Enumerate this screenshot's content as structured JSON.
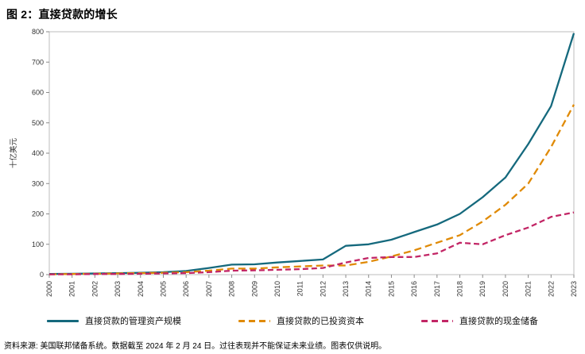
{
  "title": "图 2：直接贷款的增长",
  "footer": "资料来源: 美国联邦储备系统。数据截至 2024 年 2 月 24 日。过往表现并不能保证未来业绩。图表仅供说明。",
  "chart_data": {
    "type": "line",
    "title": "图 2：直接贷款的增长",
    "xlabel": "",
    "ylabel": "十亿美元",
    "ylim": [
      0,
      800
    ],
    "yticks": [
      0,
      100,
      200,
      300,
      400,
      500,
      600,
      700,
      800
    ],
    "grid": false,
    "legend_position": "bottom",
    "x": [
      2000,
      2001,
      2002,
      2003,
      2004,
      2005,
      2006,
      2007,
      2008,
      2009,
      2010,
      2011,
      2012,
      2013,
      2014,
      2015,
      2016,
      2017,
      2018,
      2019,
      2020,
      2021,
      2022,
      2023
    ],
    "series": [
      {
        "name": "直接贷款的管理资产规模",
        "color": "#15697d",
        "style": "solid",
        "values": [
          2,
          3,
          4,
          5,
          6,
          8,
          12,
          22,
          33,
          34,
          40,
          45,
          50,
          95,
          100,
          115,
          140,
          165,
          200,
          255,
          320,
          430,
          555,
          795
        ]
      },
      {
        "name": "直接贷款的已投资资本",
        "color": "#e08a06",
        "style": "dashed",
        "values": [
          1,
          2,
          3,
          4,
          5,
          6,
          8,
          13,
          20,
          20,
          24,
          27,
          30,
          30,
          42,
          60,
          80,
          105,
          130,
          175,
          230,
          300,
          420,
          560
        ]
      },
      {
        "name": "直接贷款的现金储备",
        "color": "#c22565",
        "style": "dashed",
        "values": [
          1,
          1,
          2,
          2,
          3,
          4,
          5,
          8,
          13,
          14,
          16,
          18,
          22,
          40,
          55,
          58,
          58,
          70,
          105,
          100,
          130,
          155,
          190,
          205
        ]
      }
    ]
  }
}
